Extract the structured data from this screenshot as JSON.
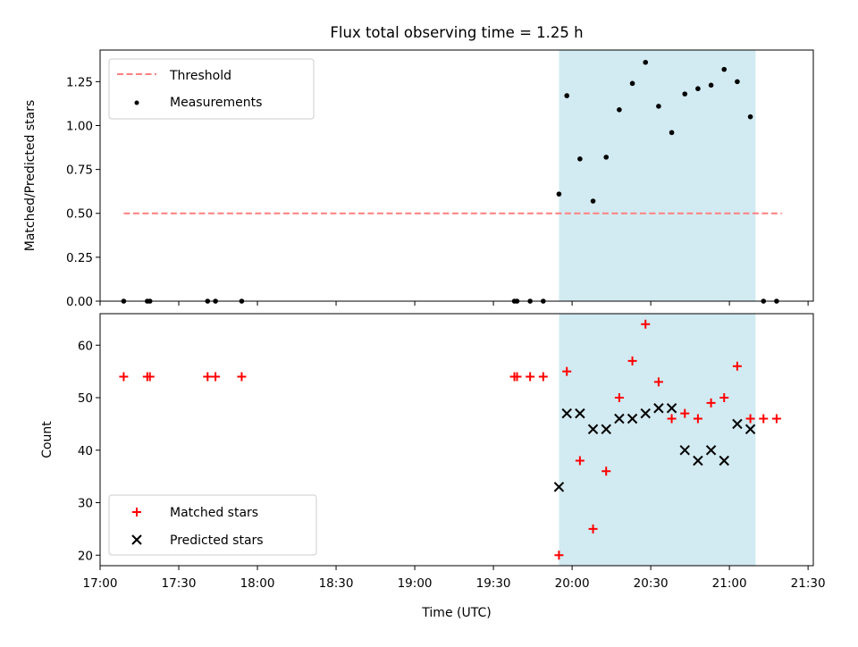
{
  "chart_data": [
    {
      "type": "scatter",
      "title": "Flux total observing time = 1.25 h",
      "xlabel": "",
      "ylabel": "Matched/Predicted stars",
      "ylim": [
        0,
        1.43
      ],
      "yticks": [
        0.0,
        0.25,
        0.5,
        0.75,
        1.0,
        1.25
      ],
      "ytick_labels": [
        "0.00",
        "0.25",
        "0.50",
        "0.75",
        "1.00",
        "1.25"
      ],
      "shaded_span": {
        "start": "19:55",
        "end": "21:10",
        "color": "#add8e6"
      },
      "legend_position": "top-left",
      "series": [
        {
          "name": "Threshold",
          "kind": "dashed-line",
          "color": "#ff7f7f",
          "x": [
            "17:09",
            "21:20"
          ],
          "y": [
            0.5,
            0.5
          ]
        },
        {
          "name": "Measurements",
          "kind": "points",
          "color": "#000000",
          "x": [
            "17:09",
            "17:18",
            "17:19",
            "17:41",
            "17:44",
            "17:54",
            "19:38",
            "19:39",
            "19:44",
            "19:49",
            "19:55",
            "19:58",
            "20:03",
            "20:08",
            "20:13",
            "20:18",
            "20:23",
            "20:28",
            "20:33",
            "20:38",
            "20:43",
            "20:48",
            "20:53",
            "20:58",
            "21:03",
            "21:08",
            "21:13",
            "21:18"
          ],
          "y": [
            0,
            0,
            0,
            0,
            0,
            0,
            0,
            0,
            0,
            0,
            0.61,
            1.17,
            0.81,
            0.57,
            0.82,
            1.09,
            1.24,
            1.36,
            1.11,
            0.96,
            1.18,
            1.21,
            1.23,
            1.32,
            1.25,
            1.05,
            0,
            0
          ]
        }
      ]
    },
    {
      "type": "scatter",
      "title": "",
      "xlabel": "Time (UTC)",
      "ylabel": "Count",
      "ylim": [
        18,
        66
      ],
      "yticks": [
        20,
        30,
        40,
        50,
        60
      ],
      "ytick_labels": [
        "20",
        "30",
        "40",
        "50",
        "60"
      ],
      "xlim": [
        "17:00",
        "21:32"
      ],
      "xticks": [
        "17:00",
        "17:30",
        "18:00",
        "18:30",
        "19:00",
        "19:30",
        "20:00",
        "20:30",
        "21:00",
        "21:30"
      ],
      "shaded_span": {
        "start": "19:55",
        "end": "21:10",
        "color": "#add8e6"
      },
      "legend_position": "bottom-left",
      "series": [
        {
          "name": "Matched stars",
          "marker": "+",
          "color": "#ff0000",
          "x": [
            "17:09",
            "17:18",
            "17:19",
            "17:41",
            "17:44",
            "17:54",
            "19:38",
            "19:39",
            "19:44",
            "19:49",
            "19:55",
            "19:58",
            "20:03",
            "20:08",
            "20:13",
            "20:18",
            "20:23",
            "20:28",
            "20:33",
            "20:38",
            "20:43",
            "20:48",
            "20:53",
            "20:58",
            "21:03",
            "21:08",
            "21:13",
            "21:18"
          ],
          "y": [
            54,
            54,
            54,
            54,
            54,
            54,
            54,
            54,
            54,
            54,
            20,
            55,
            38,
            25,
            36,
            50,
            57,
            64,
            53,
            46,
            47,
            46,
            49,
            50,
            56,
            46,
            46,
            46
          ]
        },
        {
          "name": "Predicted stars",
          "marker": "x",
          "color": "#000000",
          "x": [
            "19:55",
            "19:58",
            "20:03",
            "20:08",
            "20:13",
            "20:18",
            "20:23",
            "20:28",
            "20:33",
            "20:38",
            "20:43",
            "20:48",
            "20:53",
            "20:58",
            "21:03",
            "21:08"
          ],
          "y": [
            33,
            47,
            47,
            44,
            44,
            46,
            46,
            47,
            48,
            48,
            40,
            38,
            40,
            38,
            45,
            44
          ]
        }
      ]
    }
  ]
}
